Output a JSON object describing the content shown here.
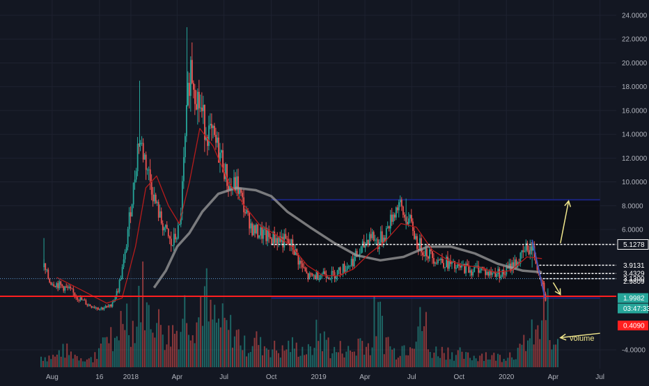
{
  "colors": {
    "background": "#131722",
    "grid": "#1e2230",
    "axis_text": "#b2b5be",
    "candle_up": "#26a69a",
    "candle_down": "#ef5350",
    "sma_red": "#b71c1c",
    "sma_gray": "#9e9e9e",
    "channel": "#1a237e",
    "channel_fill": "#0a0c10",
    "support_red": "#ff1f1f",
    "dashed_white": "#ffffff",
    "arrow": "#f0e68c",
    "volume_up": "#26a69a",
    "volume_down": "#ef5350",
    "label_teal": "#26a69a",
    "label_red": "#ff1f1f"
  },
  "chart_data": {
    "type": "candlestick",
    "price_axis": {
      "ticks": [
        "24.0000",
        "22.0000",
        "20.0000",
        "18.0000",
        "16.0000",
        "14.0000",
        "12.0000",
        "10.0000",
        "8.0000",
        "6.0000",
        "-4.0000"
      ],
      "ylim": [
        -5,
        25
      ]
    },
    "time_axis": {
      "ticks": [
        "Aug",
        "16",
        "2018",
        "Apr",
        "Jul",
        "Oct",
        "2019",
        "Apr",
        "Jul",
        "Oct",
        "2020",
        "Apr",
        "Jul"
      ]
    },
    "price_labels": [
      {
        "text": "5.1278",
        "style": "white",
        "value": 5.1278
      },
      {
        "text": "3.9131",
        "style": "white",
        "value": 3.9131
      },
      {
        "text": "3.4329",
        "style": "white",
        "value": 3.4329
      },
      {
        "text": "3.1300",
        "style": "white",
        "value": 3.13
      },
      {
        "text": "2.9809",
        "style": "white",
        "value": 2.9809
      },
      {
        "text": "2.1000",
        "style": "white",
        "value": 2.1
      },
      {
        "text": "1.9982",
        "style": "teal",
        "value": 1.9982
      },
      {
        "text": "03:47:33",
        "style": "teal"
      },
      {
        "text": "0.4090",
        "style": "red",
        "value": 0.409
      }
    ],
    "price_series": {
      "dates": [
        "2017-07-15",
        "2017-07-25",
        "2017-08-10",
        "2017-09-01",
        "2017-09-20",
        "2017-10-10",
        "2017-11-01",
        "2017-11-20",
        "2017-12-05",
        "2017-12-20",
        "2018-01-05",
        "2018-01-15",
        "2018-01-30",
        "2018-02-15",
        "2018-03-01",
        "2018-03-20",
        "2018-04-05",
        "2018-04-15",
        "2018-04-25",
        "2018-05-10",
        "2018-05-25",
        "2018-06-10",
        "2018-06-25",
        "2018-07-10",
        "2018-07-25",
        "2018-08-10",
        "2018-08-25",
        "2018-09-10",
        "2018-09-25",
        "2018-10-10",
        "2018-10-25",
        "2018-11-10",
        "2018-11-25",
        "2018-12-10",
        "2018-12-25",
        "2019-01-10",
        "2019-01-25",
        "2019-02-10",
        "2019-02-25",
        "2019-03-10",
        "2019-03-25",
        "2019-04-10",
        "2019-04-25",
        "2019-05-10",
        "2019-05-25",
        "2019-06-05",
        "2019-06-15",
        "2019-06-25",
        "2019-07-10",
        "2019-07-25",
        "2019-08-10",
        "2019-08-25",
        "2019-09-10",
        "2019-09-25",
        "2019-10-10",
        "2019-10-25",
        "2019-11-10",
        "2019-11-25",
        "2019-12-10",
        "2019-12-25",
        "2020-01-10",
        "2020-01-25",
        "2020-02-10",
        "2020-02-20",
        "2020-03-01",
        "2020-03-10",
        "2020-03-16"
      ],
      "close": [
        3.8,
        3.0,
        2.8,
        2.5,
        2.0,
        1.6,
        1.4,
        1.5,
        2.4,
        4.5,
        9.5,
        13.8,
        11.5,
        8.5,
        6.5,
        5.0,
        6.2,
        13.0,
        20.0,
        17.0,
        14.5,
        13.5,
        12.0,
        9.5,
        9.8,
        7.5,
        6.0,
        5.8,
        5.5,
        5.5,
        5.3,
        5.0,
        4.0,
        3.2,
        3.3,
        3.5,
        3.3,
        3.6,
        3.9,
        4.3,
        4.8,
        5.8,
        5.2,
        5.8,
        7.3,
        8.2,
        7.0,
        6.8,
        5.2,
        4.8,
        4.4,
        4.2,
        4.0,
        3.7,
        3.8,
        3.6,
        3.8,
        3.4,
        3.5,
        3.4,
        3.9,
        4.2,
        5.0,
        4.8,
        3.8,
        2.9,
        2.0
      ]
    },
    "sma_red": {
      "dates": [
        "2017-08-10",
        "2017-10-01",
        "2017-11-15",
        "2017-12-15",
        "2018-01-10",
        "2018-01-30",
        "2018-02-20",
        "2018-03-15",
        "2018-04-05",
        "2018-04-25",
        "2018-05-15",
        "2018-06-10",
        "2018-07-10",
        "2018-08-10",
        "2018-09-10",
        "2018-10-10",
        "2018-11-10",
        "2018-12-10",
        "2019-01-10",
        "2019-02-10",
        "2019-03-10",
        "2019-04-10",
        "2019-05-10",
        "2019-06-10",
        "2019-07-10",
        "2019-08-10",
        "2019-09-10",
        "2019-10-10",
        "2019-11-10",
        "2019-12-10",
        "2020-01-10",
        "2020-02-10",
        "2020-03-10"
      ],
      "values": [
        3.2,
        2.4,
        1.7,
        2.0,
        5.0,
        9.5,
        10.5,
        8.0,
        6.5,
        10.0,
        14.5,
        13.0,
        10.0,
        8.0,
        6.3,
        5.7,
        5.0,
        3.9,
        3.3,
        3.3,
        3.7,
        4.6,
        5.3,
        6.5,
        6.2,
        4.8,
        4.2,
        3.9,
        3.8,
        3.5,
        3.6,
        4.4,
        4.3
      ]
    },
    "sma_gray": {
      "dates": [
        "2018-02-15",
        "2018-03-10",
        "2018-04-01",
        "2018-04-25",
        "2018-05-20",
        "2018-06-20",
        "2018-07-25",
        "2018-09-01",
        "2018-10-01",
        "2018-11-01",
        "2018-12-15",
        "2019-02-01",
        "2019-03-15",
        "2019-05-01",
        "2019-06-15",
        "2019-08-01",
        "2019-09-15",
        "2019-11-01",
        "2019-12-15",
        "2020-02-01",
        "2020-03-10"
      ],
      "values": [
        2.6,
        3.6,
        5.0,
        5.8,
        7.5,
        9.0,
        9.5,
        9.3,
        8.8,
        7.5,
        6.2,
        5.2,
        4.5,
        4.2,
        4.4,
        5.0,
        5.0,
        4.6,
        4.0,
        3.6,
        3.5
      ]
    },
    "volume": {
      "axis_label": "-4.0000",
      "annotation": "volume",
      "bars": [
        0.2,
        0.2,
        0.3,
        0.25,
        0.2,
        0.15,
        0.3,
        0.6,
        0.4,
        1.0,
        0.8,
        1.4,
        1.0,
        0.8,
        0.6,
        0.7,
        1.1,
        0.9,
        1.3,
        0.9,
        0.8,
        0.7,
        0.6,
        0.4,
        0.5,
        0.4,
        0.35,
        0.3,
        0.4,
        0.35,
        0.3,
        0.6,
        0.5,
        0.3,
        0.35,
        0.3,
        0.5,
        0.4,
        0.9,
        0.5,
        0.3,
        0.4,
        0.6,
        0.8,
        0.3,
        0.3,
        0.3,
        0.25,
        0.2,
        0.2,
        0.25,
        0.2,
        0.2,
        0.25,
        0.3,
        0.5,
        0.6,
        1.1,
        0.4
      ]
    },
    "drawings": {
      "channel": {
        "top": 8.5,
        "bottom": 2.0,
        "start": "2018-10-01",
        "end": "2020-07-01"
      },
      "support_line": 2.1,
      "dashed_levels": [
        5.1278,
        3.9131,
        3.4329,
        3.13
      ],
      "dotted_level": 3.13,
      "arrows": [
        {
          "from": {
            "date": "2020-04-15",
            "value": 5.2
          },
          "to": {
            "date": "2020-05-01",
            "value": 8.4
          }
        },
        {
          "from": {
            "date": "2020-04-01",
            "value": 2.9
          },
          "to": {
            "date": "2020-04-15",
            "value": 2.2
          }
        },
        {
          "from": {
            "date": "2020-07-01",
            "value": -1.0
          },
          "to": {
            "date": "2020-04-15",
            "value": -1.8
          }
        }
      ]
    }
  }
}
